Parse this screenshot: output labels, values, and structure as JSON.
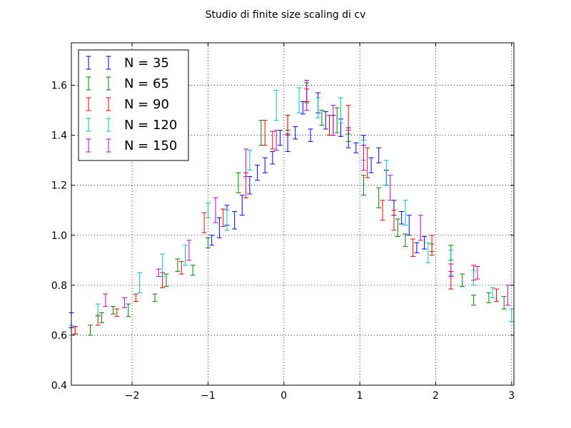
{
  "chart_data": {
    "type": "scatter",
    "title": "Studio di finite size scaling di cv",
    "xlabel": "",
    "ylabel": "",
    "xlim": [
      -2.8,
      3.03
    ],
    "ylim": [
      0.4,
      1.77
    ],
    "xticks": [
      -2,
      -1,
      0,
      1,
      2,
      3
    ],
    "xtick_labels": [
      "−2",
      "−1",
      "0",
      "1",
      "2",
      "3"
    ],
    "yticks": [
      0.4,
      0.6,
      0.8,
      1.0,
      1.2,
      1.4,
      1.6
    ],
    "ytick_labels": [
      "0.4",
      "0.6",
      "0.8",
      "1.0",
      "1.2",
      "1.4",
      "1.6"
    ],
    "grid": true,
    "legend_position": "top-left",
    "series": [
      {
        "name": "N = 35",
        "color": "#0000ff",
        "points": [
          {
            "x": -2.8,
            "y": 0.66,
            "err": 0.03
          },
          {
            "x": -0.95,
            "y": 0.98,
            "err": 0.02
          },
          {
            "x": -0.85,
            "y": 1.03,
            "err": 0.04
          },
          {
            "x": -0.75,
            "y": 1.08,
            "err": 0.04
          },
          {
            "x": -0.65,
            "y": 1.06,
            "err": 0.035
          },
          {
            "x": -0.55,
            "y": 1.12,
            "err": 0.04
          },
          {
            "x": -0.45,
            "y": 1.2,
            "err": 0.035
          },
          {
            "x": -0.35,
            "y": 1.25,
            "err": 0.03
          },
          {
            "x": -0.25,
            "y": 1.28,
            "err": 0.03
          },
          {
            "x": -0.15,
            "y": 1.31,
            "err": 0.025
          },
          {
            "x": -0.05,
            "y": 1.39,
            "err": 0.03
          },
          {
            "x": 0.05,
            "y": 1.37,
            "err": 0.035
          },
          {
            "x": 0.15,
            "y": 1.41,
            "err": 0.025
          },
          {
            "x": 0.25,
            "y": 1.51,
            "err": 0.025
          },
          {
            "x": 0.35,
            "y": 1.4,
            "err": 0.025
          },
          {
            "x": 0.45,
            "y": 1.53,
            "err": 0.04
          },
          {
            "x": 0.55,
            "y": 1.46,
            "err": 0.035
          },
          {
            "x": 0.65,
            "y": 1.44,
            "err": 0.04
          },
          {
            "x": 0.75,
            "y": 1.43,
            "err": 0.035
          },
          {
            "x": 0.85,
            "y": 1.39,
            "err": 0.04
          },
          {
            "x": 0.95,
            "y": 1.35,
            "err": 0.02
          },
          {
            "x": 1.05,
            "y": 1.38,
            "err": 0.02
          },
          {
            "x": 1.15,
            "y": 1.28,
            "err": 0.03
          },
          {
            "x": 1.25,
            "y": 1.32,
            "err": 0.03
          },
          {
            "x": 1.35,
            "y": 1.23,
            "err": 0.03
          },
          {
            "x": 1.45,
            "y": 1.11,
            "err": 0.03
          },
          {
            "x": 1.55,
            "y": 1.07,
            "err": 0.025
          },
          {
            "x": 1.65,
            "y": 1.04,
            "err": 0.04
          },
          {
            "x": 1.75,
            "y": 0.95,
            "err": 0.02
          },
          {
            "x": 1.85,
            "y": 0.97,
            "err": 0.025
          }
        ]
      },
      {
        "name": "N = 65",
        "color": "#008000",
        "points": [
          {
            "x": -2.75,
            "y": 0.62,
            "err": 0.015
          },
          {
            "x": -2.55,
            "y": 0.62,
            "err": 0.02
          },
          {
            "x": -2.4,
            "y": 0.67,
            "err": 0.02
          },
          {
            "x": -2.25,
            "y": 0.7,
            "err": 0.015
          },
          {
            "x": -2.05,
            "y": 0.7,
            "err": 0.025
          },
          {
            "x": -1.7,
            "y": 0.75,
            "err": 0.015
          },
          {
            "x": -1.55,
            "y": 0.82,
            "err": 0.025
          },
          {
            "x": -1.4,
            "y": 0.88,
            "err": 0.025
          },
          {
            "x": -1.2,
            "y": 0.86,
            "err": 0.02
          },
          {
            "x": -1.0,
            "y": 0.97,
            "err": 0.02
          },
          {
            "x": -0.6,
            "y": 1.21,
            "err": 0.04
          },
          {
            "x": -0.3,
            "y": 1.41,
            "err": 0.05
          },
          {
            "x": 0.05,
            "y": 1.45,
            "err": 0.03
          },
          {
            "x": 0.3,
            "y": 1.57,
            "err": 0.04
          },
          {
            "x": 0.5,
            "y": 1.47,
            "err": 0.03
          },
          {
            "x": 0.6,
            "y": 1.44,
            "err": 0.04
          },
          {
            "x": 0.7,
            "y": 1.46,
            "err": 0.05
          },
          {
            "x": 0.85,
            "y": 1.39,
            "err": 0.015
          },
          {
            "x": 1.05,
            "y": 1.2,
            "err": 0.04
          },
          {
            "x": 1.25,
            "y": 1.15,
            "err": 0.04
          },
          {
            "x": 1.5,
            "y": 1.03,
            "err": 0.035
          },
          {
            "x": 1.6,
            "y": 0.98,
            "err": 0.025
          },
          {
            "x": 1.95,
            "y": 0.95,
            "err": 0.015
          },
          {
            "x": 2.2,
            "y": 0.93,
            "err": 0.03
          },
          {
            "x": 2.35,
            "y": 0.82,
            "err": 0.025
          },
          {
            "x": 2.5,
            "y": 0.74,
            "err": 0.02
          },
          {
            "x": 2.7,
            "y": 0.75,
            "err": 0.02
          },
          {
            "x": 2.9,
            "y": 0.73,
            "err": 0.025
          }
        ]
      },
      {
        "name": "N = 90",
        "color": "#ff0000",
        "points": [
          {
            "x": -2.75,
            "y": 0.62,
            "err": 0.015
          },
          {
            "x": -2.45,
            "y": 0.66,
            "err": 0.02
          },
          {
            "x": -2.2,
            "y": 0.69,
            "err": 0.015
          },
          {
            "x": -1.95,
            "y": 0.75,
            "err": 0.015
          },
          {
            "x": -1.6,
            "y": 0.82,
            "err": 0.03
          },
          {
            "x": -1.35,
            "y": 0.87,
            "err": 0.025
          },
          {
            "x": -1.05,
            "y": 1.05,
            "err": 0.04
          },
          {
            "x": -0.8,
            "y": 1.07,
            "err": 0.035
          },
          {
            "x": -0.5,
            "y": 1.2,
            "err": 0.05
          },
          {
            "x": -0.25,
            "y": 1.41,
            "err": 0.05
          },
          {
            "x": -0.15,
            "y": 1.38,
            "err": 0.035
          },
          {
            "x": 0.05,
            "y": 1.44,
            "err": 0.04
          },
          {
            "x": 0.3,
            "y": 1.56,
            "err": 0.025
          },
          {
            "x": 0.6,
            "y": 1.44,
            "err": 0.04
          },
          {
            "x": 0.85,
            "y": 1.47,
            "err": 0.05
          },
          {
            "x": 1.1,
            "y": 1.29,
            "err": 0.06
          },
          {
            "x": 1.3,
            "y": 1.1,
            "err": 0.04
          },
          {
            "x": 1.45,
            "y": 1.06,
            "err": 0.04
          },
          {
            "x": 1.7,
            "y": 0.95,
            "err": 0.035
          },
          {
            "x": 1.95,
            "y": 0.96,
            "err": 0.04
          },
          {
            "x": 2.2,
            "y": 0.82,
            "err": 0.035
          },
          {
            "x": 2.5,
            "y": 0.85,
            "err": 0.03
          },
          {
            "x": 2.8,
            "y": 0.76,
            "err": 0.025
          }
        ]
      },
      {
        "name": "N = 120",
        "color": "#00bfbf",
        "points": [
          {
            "x": -2.8,
            "y": 0.62,
            "err": 0.02
          },
          {
            "x": -2.45,
            "y": 0.7,
            "err": 0.025
          },
          {
            "x": -1.9,
            "y": 0.81,
            "err": 0.04
          },
          {
            "x": -1.6,
            "y": 0.88,
            "err": 0.045
          },
          {
            "x": -1.3,
            "y": 0.92,
            "err": 0.04
          },
          {
            "x": -1.0,
            "y": 1.1,
            "err": 0.03
          },
          {
            "x": -0.75,
            "y": 1.06,
            "err": 0.04
          },
          {
            "x": -0.45,
            "y": 1.3,
            "err": 0.04
          },
          {
            "x": -0.1,
            "y": 1.52,
            "err": 0.06
          },
          {
            "x": 0.2,
            "y": 1.54,
            "err": 0.05
          },
          {
            "x": 0.45,
            "y": 1.51,
            "err": 0.04
          },
          {
            "x": 0.75,
            "y": 1.5,
            "err": 0.05
          },
          {
            "x": 1.05,
            "y": 1.34,
            "err": 0.04
          },
          {
            "x": 1.35,
            "y": 1.25,
            "err": 0.05
          },
          {
            "x": 1.6,
            "y": 1.09,
            "err": 0.05
          },
          {
            "x": 1.9,
            "y": 0.93,
            "err": 0.04
          },
          {
            "x": 2.2,
            "y": 0.89,
            "err": 0.05
          },
          {
            "x": 2.5,
            "y": 0.83,
            "err": 0.03
          },
          {
            "x": 2.75,
            "y": 0.77,
            "err": 0.02
          },
          {
            "x": 3.0,
            "y": 0.68,
            "err": 0.025
          }
        ]
      },
      {
        "name": "N = 150",
        "color": "#bf00bf",
        "points": [
          {
            "x": -2.35,
            "y": 0.74,
            "err": 0.025
          },
          {
            "x": -2.1,
            "y": 0.73,
            "err": 0.02
          },
          {
            "x": -1.65,
            "y": 0.85,
            "err": 0.015
          },
          {
            "x": -1.25,
            "y": 0.94,
            "err": 0.04
          },
          {
            "x": -0.9,
            "y": 1.1,
            "err": 0.05
          },
          {
            "x": -0.5,
            "y": 1.29,
            "err": 0.055
          },
          {
            "x": -0.1,
            "y": 1.38,
            "err": 0.04
          },
          {
            "x": 0.3,
            "y": 1.56,
            "err": 0.06
          },
          {
            "x": 0.65,
            "y": 1.46,
            "err": 0.06
          },
          {
            "x": 1.05,
            "y": 1.31,
            "err": 0.05
          },
          {
            "x": 1.4,
            "y": 1.19,
            "err": 0.05
          },
          {
            "x": 1.8,
            "y": 1.03,
            "err": 0.05
          },
          {
            "x": 2.2,
            "y": 0.86,
            "err": 0.025
          },
          {
            "x": 2.55,
            "y": 0.85,
            "err": 0.025
          },
          {
            "x": 2.95,
            "y": 0.76,
            "err": 0.04
          }
        ]
      }
    ]
  }
}
